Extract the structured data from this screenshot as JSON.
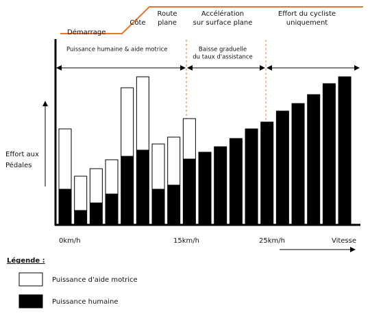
{
  "chart_data": {
    "type": "bar",
    "stacked": true,
    "phases": [
      [
        "Démarrage"
      ],
      [
        "Côte"
      ],
      [
        "Route",
        "plane"
      ],
      [
        "Accélération",
        "sur surface plane"
      ],
      [
        "Effort du cycliste",
        "uniquement"
      ]
    ],
    "annotations": [
      [
        "Puissance humaine & aide motrice"
      ],
      [
        "Baisse graduelle",
        "du taux d'assistance"
      ]
    ],
    "y_label": [
      "Effort aux",
      "Pédales"
    ],
    "x_labels": [
      "0km/h",
      "15km/h",
      "25km/h",
      "Vitesse"
    ],
    "categories": [
      null,
      null,
      null,
      null,
      null,
      null,
      null,
      null,
      null,
      null,
      null,
      null,
      null,
      null,
      null,
      null,
      null,
      null,
      null
    ],
    "series": [
      {
        "name": "Puissance humaine",
        "color": "#000000",
        "values": [
          51,
          20,
          31,
          44,
          99,
          108,
          51,
          57,
          95,
          105,
          113,
          125,
          139,
          149,
          165,
          176,
          189,
          205,
          215
        ]
      },
      {
        "name": "Puissance d'aide motrice",
        "color": "#ffffff",
        "values": [
          88,
          50,
          50,
          50,
          100,
          107,
          66,
          70,
          59,
          0,
          0,
          0,
          0,
          0,
          0,
          0,
          0,
          0,
          0
        ]
      }
    ],
    "ylim": [
      0,
      270
    ],
    "legend_title": "Légende :"
  }
}
